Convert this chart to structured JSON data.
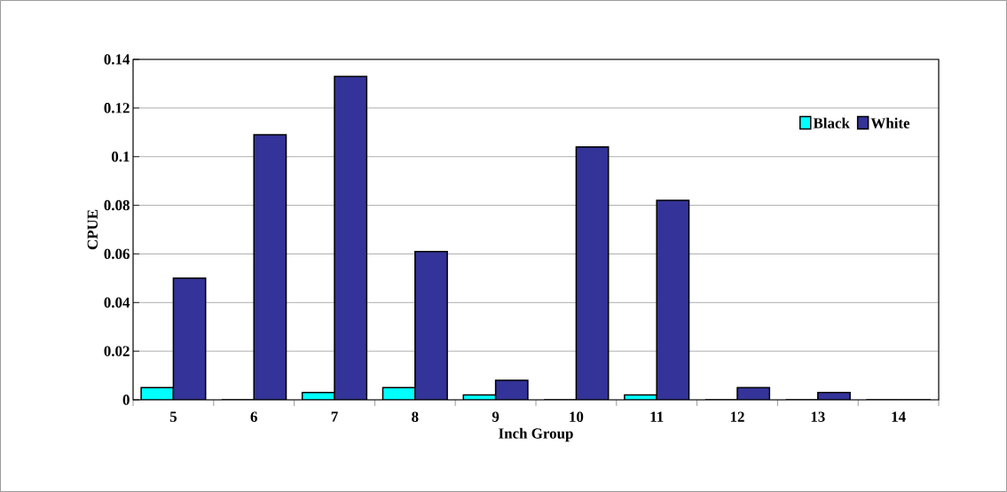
{
  "chart_data": {
    "type": "bar",
    "xlabel": "Inch Group",
    "ylabel": "CPUE",
    "categories": [
      "5",
      "6",
      "7",
      "8",
      "9",
      "10",
      "11",
      "12",
      "13",
      "14"
    ],
    "series": [
      {
        "name": "Black",
        "color": "#00ffff",
        "values": [
          0.005,
          0,
          0.003,
          0.005,
          0.002,
          0,
          0.002,
          0,
          0,
          0
        ]
      },
      {
        "name": "White",
        "color": "#333399",
        "values": [
          0.05,
          0.109,
          0.133,
          0.061,
          0.008,
          0.104,
          0.082,
          0.005,
          0.003,
          0
        ]
      }
    ],
    "ylim": [
      0,
      0.14
    ],
    "yticks": [
      0,
      0.02,
      0.04,
      0.06,
      0.08,
      0.1,
      0.12,
      0.14
    ],
    "grid": "y",
    "legend": "top right"
  }
}
